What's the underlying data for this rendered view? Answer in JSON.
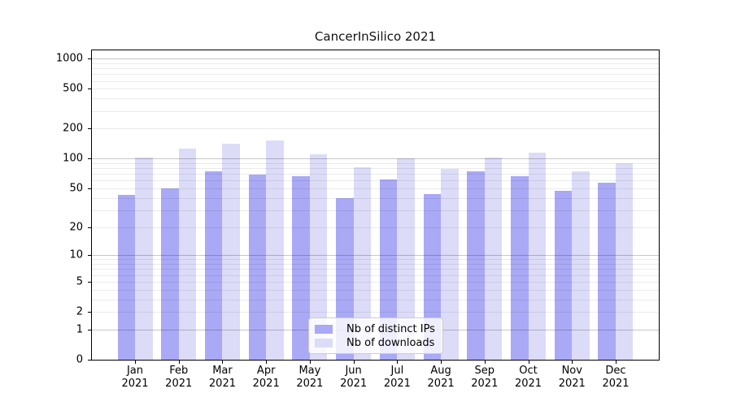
{
  "title": "CancerInSilico 2021",
  "chart_data": {
    "type": "bar",
    "title": "CancerInSilico 2021",
    "y_scale": "log10(1+x)",
    "grid": "horizontal log major+minor",
    "legend_position": "lower center",
    "categories": [
      "Jan",
      "Feb",
      "Mar",
      "Apr",
      "May",
      "Jun",
      "Jul",
      "Aug",
      "Sep",
      "Oct",
      "Nov",
      "Dec"
    ],
    "category_year": "2021",
    "y_ticks": [
      0,
      1,
      2,
      5,
      10,
      20,
      50,
      100,
      200,
      500,
      1000
    ],
    "ylim": [
      0,
      1200
    ],
    "series": [
      {
        "name": "Nb of distinct IPs",
        "color": "#a9a9f6",
        "values": [
          43,
          50,
          74,
          69,
          67,
          40,
          62,
          44,
          74,
          67,
          47,
          57
        ]
      },
      {
        "name": "Nb of downloads",
        "color": "#dcdcf9",
        "values": [
          103,
          126,
          142,
          153,
          111,
          82,
          100,
          79,
          102,
          115,
          75,
          89
        ]
      }
    ]
  }
}
